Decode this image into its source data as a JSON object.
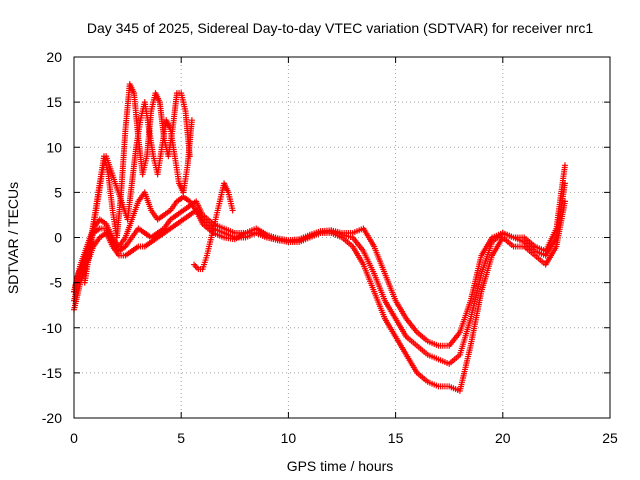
{
  "chart_data": {
    "type": "scatter",
    "title": "Day 345 of 2025, Sidereal Day-to-day VTEC variation (SDTVAR) for receiver nrc1",
    "xlabel": "GPS time / hours",
    "ylabel": "SDTVAR / TECUs",
    "xlim": [
      0,
      25
    ],
    "ylim": [
      -20,
      20
    ],
    "xticks": [
      0,
      5,
      10,
      15,
      20,
      25
    ],
    "yticks": [
      -20,
      -15,
      -10,
      -5,
      0,
      5,
      10,
      15,
      20
    ],
    "grid": true,
    "marker": "+",
    "color": "#ff0000",
    "series": [
      {
        "name": "trace-1",
        "x": [
          0.0,
          0.3,
          0.6,
          0.9,
          1.2,
          1.5,
          1.8,
          2.1,
          2.4,
          2.7,
          3.0,
          3.3,
          3.6,
          3.9,
          4.2,
          4.5,
          4.8,
          5.1,
          5.4,
          5.7,
          6.0,
          6.5,
          7.0,
          7.5,
          8.0,
          8.5,
          9.0,
          9.5,
          10.0,
          10.5,
          11.0,
          11.5,
          12.0,
          12.5,
          13.0,
          13.5,
          14.0,
          14.5,
          15.0,
          15.5,
          16.0,
          16.5,
          17.0,
          17.5,
          18.0,
          18.5,
          19.0,
          19.5,
          20.0,
          20.5,
          21.0,
          21.5,
          22.0,
          22.5,
          22.9
        ],
        "y": [
          -8,
          -5,
          -3,
          -1,
          0,
          0.5,
          -1,
          -2,
          -2,
          -1.5,
          -1,
          -1,
          -0.5,
          0,
          0.5,
          1,
          1.5,
          2,
          2.5,
          3,
          2,
          1,
          0.5,
          0,
          0,
          0.5,
          0,
          -0.3,
          -0.5,
          -0.5,
          0,
          0.5,
          0.5,
          0,
          -1,
          -3,
          -6,
          -9,
          -11,
          -13,
          -15,
          -16,
          -16.5,
          -16.5,
          -17,
          -12,
          -6,
          -2,
          0,
          -1,
          -1,
          -2,
          -3,
          -1,
          4
        ]
      },
      {
        "name": "trace-2",
        "x": [
          0.0,
          0.3,
          0.6,
          0.9,
          1.2,
          1.5,
          1.8,
          2.1,
          2.4,
          2.7,
          3.0,
          3.3,
          3.6,
          3.9,
          4.2,
          4.5,
          4.8,
          5.1,
          5.4,
          5.7,
          6.0,
          6.5,
          7.0,
          7.5,
          8.0,
          8.5,
          9.0,
          9.5,
          10.0,
          10.5,
          11.0,
          11.5,
          12.0,
          12.5,
          13.0,
          13.5,
          14.0,
          14.5,
          15.0,
          15.5,
          16.0,
          16.5,
          17.0,
          17.5,
          18.0,
          18.5,
          19.0,
          19.5,
          20.0,
          20.5,
          21.0,
          21.5,
          22.0,
          22.5,
          22.9
        ],
        "y": [
          -7,
          -4,
          -2,
          0.5,
          1,
          1,
          -0.5,
          -1.5,
          -1,
          0,
          1,
          0.5,
          0,
          0.5,
          1,
          2,
          2.5,
          3,
          3.5,
          4,
          2.5,
          1.5,
          1,
          0.5,
          0.5,
          0.5,
          0,
          -0.2,
          -0.4,
          -0.3,
          0.2,
          0.6,
          0.7,
          0.3,
          0,
          -1.5,
          -4,
          -7,
          -9,
          -11,
          -12,
          -13,
          -13.5,
          -14,
          -13,
          -9,
          -4,
          -0.5,
          0.5,
          0,
          -0.5,
          -1.5,
          -2,
          0,
          6
        ]
      },
      {
        "name": "trace-3",
        "x": [
          0.0,
          0.3,
          0.6,
          0.9,
          1.2,
          1.5,
          1.8,
          2.1,
          2.4,
          2.7,
          3.0,
          3.3,
          3.6,
          3.9,
          4.2,
          4.5,
          4.8,
          5.1,
          5.4,
          5.7,
          6.0,
          6.5,
          7.0,
          7.5,
          8.0,
          8.5,
          9.0,
          9.5,
          10.0,
          10.5,
          11.0,
          11.5,
          12.0,
          12.5,
          13.0,
          13.5,
          14.0,
          14.5,
          15.0,
          15.5,
          16.0,
          16.5,
          17.0,
          17.5,
          18.0,
          18.5,
          19.0,
          19.5,
          20.0,
          20.5,
          21.0,
          21.5,
          22.0,
          22.5,
          22.9
        ],
        "y": [
          -6,
          -3,
          -1,
          1,
          2,
          1.5,
          0,
          -1,
          0,
          2,
          4,
          5,
          3,
          2,
          2.5,
          3,
          4,
          4.5,
          4,
          3,
          1.5,
          0.5,
          0,
          -0.2,
          0.5,
          1,
          0.3,
          -0.1,
          -0.3,
          -0.2,
          0.3,
          0.7,
          0.8,
          0.5,
          0.5,
          1,
          -1,
          -4,
          -7,
          -9,
          -10.5,
          -11.5,
          -12,
          -12,
          -10.5,
          -7,
          -2,
          0,
          0.5,
          0,
          0,
          -1,
          -1.5,
          1,
          8
        ]
      },
      {
        "name": "trace-4",
        "x": [
          0.0,
          0.2,
          0.4,
          0.6,
          0.8,
          1.0,
          1.2,
          1.4,
          1.6,
          1.8,
          2.0,
          2.2,
          2.4,
          2.6,
          2.8,
          3.0,
          3.2,
          3.4,
          3.6,
          3.8,
          4.0,
          4.2,
          4.4,
          4.6,
          4.8,
          5.0,
          5.2,
          5.4
        ],
        "y": [
          -6,
          -4,
          -3,
          -2,
          0,
          3,
          6,
          9,
          7,
          3,
          0,
          5,
          12,
          17,
          16,
          11,
          7,
          9,
          14,
          16,
          15,
          11,
          9,
          12,
          16,
          16,
          14,
          9
        ]
      },
      {
        "name": "trace-5",
        "x": [
          0.5,
          0.7,
          0.9,
          1.1,
          1.3,
          1.5,
          2.5,
          2.7,
          2.9,
          3.1,
          3.3,
          3.5,
          3.7,
          3.9,
          4.1,
          4.3,
          4.5,
          4.7,
          4.9,
          5.1,
          5.3,
          5.5
        ],
        "y": [
          -5,
          -2,
          1,
          4,
          7,
          9,
          2,
          6,
          10,
          13,
          15,
          12,
          9,
          7,
          10,
          13,
          12,
          9,
          6,
          5,
          8,
          13
        ]
      },
      {
        "name": "trace-6",
        "x": [
          5.6,
          5.8,
          6.0,
          6.2,
          6.4,
          6.6,
          6.8,
          7.0,
          7.2,
          7.4
        ],
        "y": [
          -3,
          -3.5,
          -3.5,
          -2,
          0,
          2,
          4,
          6,
          5,
          3
        ]
      }
    ]
  }
}
